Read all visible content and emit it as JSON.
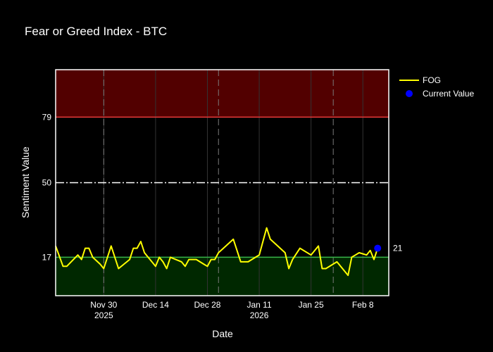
{
  "chart_data": {
    "type": "line",
    "title": "Fear or Greed Index - BTC",
    "xlabel": "Date",
    "ylabel": "Sentiment Value",
    "xlim": [
      "2025-11-17",
      "2026-02-15"
    ],
    "ylim": [
      0,
      100
    ],
    "yticks": [
      17,
      50,
      79
    ],
    "xticks": [
      {
        "date": "2025-11-30",
        "label": "Nov 30",
        "sub": "2025"
      },
      {
        "date": "2025-12-14",
        "label": "Dec 14",
        "sub": ""
      },
      {
        "date": "2025-12-28",
        "label": "Dec 28",
        "sub": ""
      },
      {
        "date": "2026-01-11",
        "label": "Jan 11",
        "sub": "2026"
      },
      {
        "date": "2026-01-25",
        "label": "Jan 25",
        "sub": ""
      },
      {
        "date": "2026-02-08",
        "label": "Feb 8",
        "sub": ""
      }
    ],
    "zones": [
      {
        "from": 79,
        "to": 100,
        "color": "#520000"
      },
      {
        "from": 0,
        "to": 17,
        "color": "#002800"
      }
    ],
    "threshold_lines": [
      {
        "value": 79,
        "color": "#e83a3a",
        "style": "solid"
      },
      {
        "value": 50,
        "color": "#ffffff",
        "style": "dashdot"
      },
      {
        "value": 17,
        "color": "#39b54a",
        "style": "solid"
      }
    ],
    "vertical_lines": [
      "2025-11-30",
      "2025-12-31",
      "2026-01-31"
    ],
    "legend": {
      "placement": "top-right"
    },
    "series": [
      {
        "name": "FOG",
        "color": "#ffff00",
        "points": [
          [
            "2025-11-17",
            22
          ],
          [
            "2025-11-19",
            13
          ],
          [
            "2025-11-20",
            13
          ],
          [
            "2025-11-23",
            18
          ],
          [
            "2025-11-24",
            16
          ],
          [
            "2025-11-25",
            21
          ],
          [
            "2025-11-26",
            21
          ],
          [
            "2025-11-27",
            17
          ],
          [
            "2025-11-29",
            14
          ],
          [
            "2025-11-30",
            12
          ],
          [
            "2025-12-02",
            22
          ],
          [
            "2025-12-04",
            12
          ],
          [
            "2025-12-07",
            16
          ],
          [
            "2025-12-08",
            21
          ],
          [
            "2025-12-09",
            21
          ],
          [
            "2025-12-10",
            24
          ],
          [
            "2025-12-11",
            19
          ],
          [
            "2025-12-14",
            13
          ],
          [
            "2025-12-15",
            17
          ],
          [
            "2025-12-16",
            15
          ],
          [
            "2025-12-17",
            12
          ],
          [
            "2025-12-18",
            17
          ],
          [
            "2025-12-21",
            15
          ],
          [
            "2025-12-22",
            13
          ],
          [
            "2025-12-23",
            16
          ],
          [
            "2025-12-25",
            16
          ],
          [
            "2025-12-27",
            14
          ],
          [
            "2025-12-28",
            13
          ],
          [
            "2025-12-29",
            16
          ],
          [
            "2025-12-30",
            16
          ],
          [
            "2025-12-31",
            19
          ],
          [
            "2026-01-04",
            25
          ],
          [
            "2026-01-06",
            15
          ],
          [
            "2026-01-08",
            15
          ],
          [
            "2026-01-10",
            17
          ],
          [
            "2026-01-11",
            18
          ],
          [
            "2026-01-13",
            30
          ],
          [
            "2026-01-14",
            25
          ],
          [
            "2026-01-16",
            22
          ],
          [
            "2026-01-18",
            19
          ],
          [
            "2026-01-19",
            12
          ],
          [
            "2026-01-20",
            16
          ],
          [
            "2026-01-22",
            21
          ],
          [
            "2026-01-25",
            18
          ],
          [
            "2026-01-27",
            22
          ],
          [
            "2026-01-28",
            12
          ],
          [
            "2026-01-29",
            12
          ],
          [
            "2026-02-01",
            15
          ],
          [
            "2026-02-04",
            9
          ],
          [
            "2026-02-05",
            17
          ],
          [
            "2026-02-06",
            18
          ],
          [
            "2026-02-07",
            19
          ],
          [
            "2026-02-09",
            18
          ],
          [
            "2026-02-10",
            20
          ],
          [
            "2026-02-11",
            16
          ],
          [
            "2026-02-12",
            21
          ]
        ]
      }
    ],
    "current": {
      "name": "Current Value",
      "date": "2026-02-12",
      "value": 21,
      "label": "21",
      "color": "#0000ff"
    }
  }
}
